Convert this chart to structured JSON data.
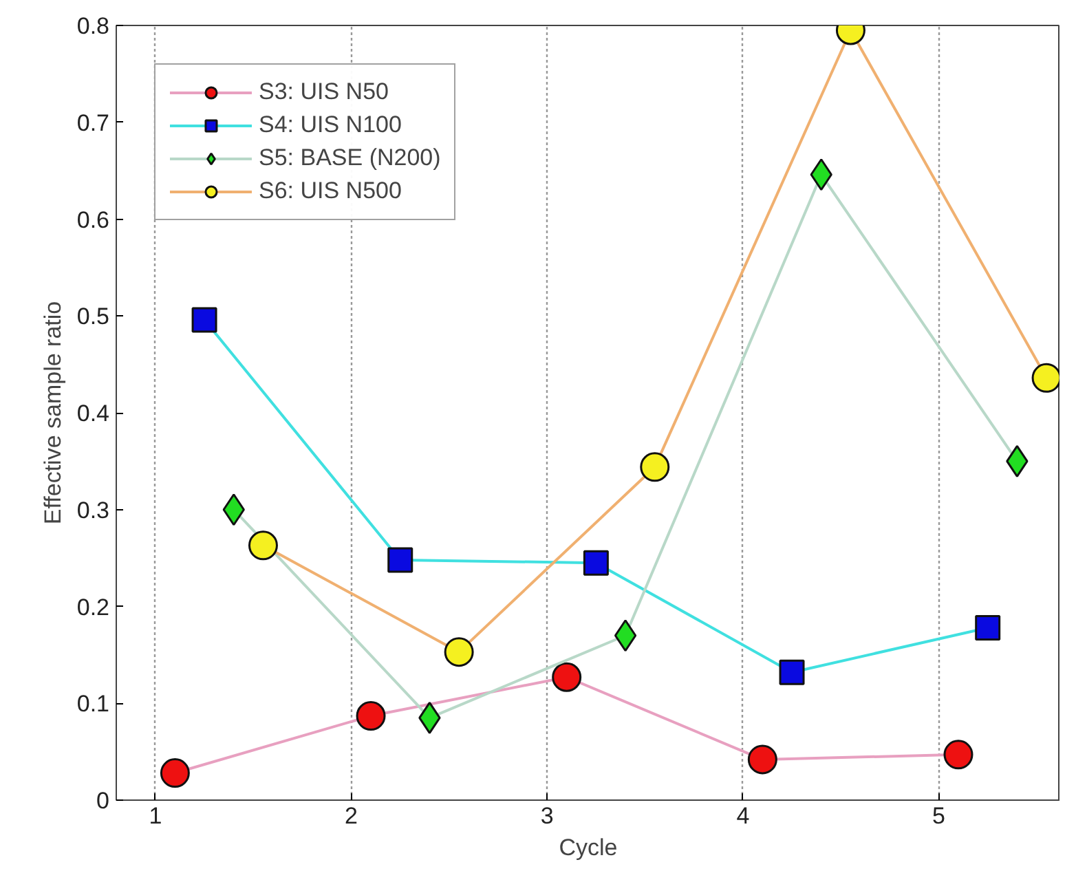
{
  "chart_data": {
    "type": "line",
    "xlabel": "Cycle",
    "ylabel": "Effective sample ratio",
    "xlim": [
      0.8,
      5.62
    ],
    "xticks": [
      1,
      2,
      3,
      4,
      5
    ],
    "ylim": [
      0,
      0.8
    ],
    "yticks": [
      0,
      0.1,
      0.2,
      0.3,
      0.4,
      0.5,
      0.6,
      0.7,
      0.8
    ],
    "grid": "x",
    "legend": "top left",
    "line_style": "solid",
    "series": [
      {
        "name": "S3: UIS N50",
        "color": "#e8a0c0",
        "colors": [
          "#ee1111",
          "#ee1111",
          "#ee1111",
          "#ee1111",
          "#ee1111"
        ],
        "marker": "circle",
        "x": [
          1.1,
          2.1,
          3.1,
          4.1,
          5.1
        ],
        "values": [
          0.028,
          0.087,
          0.127,
          0.042,
          0.047
        ]
      },
      {
        "name": "S4: UIS N100",
        "color": "#40e0e0",
        "colors": [
          "#0a0ae0",
          "#0a0ae0",
          "#0a0ae0",
          "#0a0ae0",
          "#0a0ae0"
        ],
        "marker": "square",
        "x": [
          1.25,
          2.25,
          3.25,
          4.25,
          5.25
        ],
        "values": [
          0.496,
          0.248,
          0.245,
          0.132,
          0.178
        ]
      },
      {
        "name": "S5: BASE (N200)",
        "color": "#b8d8c8",
        "colors": [
          "#22dd22",
          "#22dd22",
          "#22dd22",
          "#22dd22",
          "#22dd22"
        ],
        "marker": "diamond",
        "x": [
          1.4,
          2.4,
          3.4,
          4.4,
          5.4
        ],
        "values": [
          0.3,
          0.085,
          0.17,
          0.646,
          0.35
        ]
      },
      {
        "name": "S6: UIS N500",
        "color": "#f0b070",
        "colors": [
          "#f5f020",
          "#f5f020",
          "#f5f020",
          "#f5f020",
          "#f5f020"
        ],
        "marker": "circle",
        "x": [
          1.55,
          2.55,
          3.55,
          4.55,
          5.55
        ],
        "values": [
          0.263,
          0.153,
          0.344,
          0.795,
          0.436
        ]
      }
    ]
  }
}
